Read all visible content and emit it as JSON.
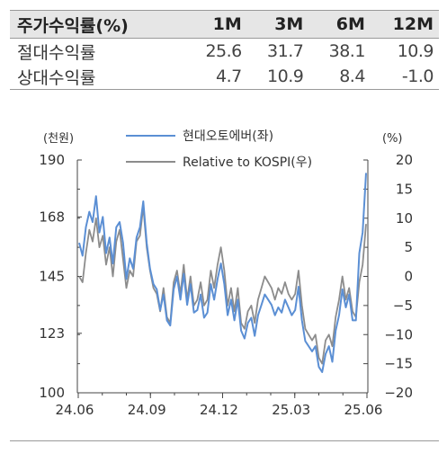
{
  "returns_table": {
    "headers": [
      "주가수익률(%)",
      "1M",
      "3M",
      "6M",
      "12M"
    ],
    "rows": [
      {
        "label": "절대수익률",
        "values": [
          "25.6",
          "31.7",
          "38.1",
          "10.9"
        ]
      },
      {
        "label": "상대수익률",
        "values": [
          "4.7",
          "10.9",
          "8.4",
          "-1.0"
        ]
      }
    ]
  },
  "chart_data": {
    "type": "line",
    "left_unit": "(천원)",
    "right_unit": "(%)",
    "x_ticks": [
      "24.06",
      "24.09",
      "24.12",
      "25.03",
      "25.06"
    ],
    "y_left_ticks": [
      "190",
      "168",
      "145",
      "123",
      "100"
    ],
    "y_right_ticks": [
      "20",
      "15",
      "10",
      "5",
      "0",
      "-5",
      "-10",
      "-15",
      "-20"
    ],
    "ylim_left": [
      100,
      190
    ],
    "ylim_right": [
      -20,
      20
    ],
    "colors": {
      "stock": "#5b8fd4",
      "relative": "#8c8c8c"
    },
    "series": [
      {
        "name": "현대오토에버(좌)",
        "axis": "left",
        "values": [
          158,
          153,
          164,
          170,
          166,
          176,
          162,
          168,
          154,
          160,
          150,
          164,
          166,
          158,
          144,
          152,
          148,
          160,
          164,
          174,
          158,
          148,
          142,
          140,
          132,
          138,
          128,
          126,
          140,
          145,
          136,
          146,
          134,
          142,
          131,
          132,
          138,
          129,
          131,
          142,
          136,
          144,
          150,
          142,
          130,
          136,
          128,
          136,
          124,
          121,
          127,
          129,
          122,
          130,
          134,
          138,
          136,
          134,
          130,
          133,
          131,
          136,
          133,
          130,
          132,
          141,
          128,
          120,
          118,
          116,
          118,
          110,
          108,
          115,
          118,
          112,
          124,
          130,
          140,
          133,
          138,
          128,
          128,
          154,
          162,
          185
        ]
      },
      {
        "name": "Relative to KOSPI(우)",
        "axis": "right",
        "values": [
          0,
          -1,
          4,
          8,
          6,
          10,
          5,
          7,
          2,
          5,
          0,
          6,
          8,
          3,
          -2,
          1,
          0,
          6,
          7,
          12,
          5,
          1,
          -2,
          -3,
          -6,
          -2,
          -7,
          -8,
          -1,
          1,
          -3,
          2,
          -4,
          0,
          -5,
          -4,
          -1,
          -5,
          -4,
          1,
          -2,
          2,
          5,
          1,
          -5,
          -2,
          -6,
          -2,
          -8,
          -9,
          -6,
          -5,
          -8,
          -4,
          -2,
          0,
          -1,
          -2,
          -4,
          -2,
          -3,
          -1,
          -3,
          -4,
          -3,
          1,
          -5,
          -9,
          -10,
          -11,
          -10,
          -14,
          -15,
          -11,
          -10,
          -12,
          -7,
          -4,
          0,
          -4,
          -2,
          -6,
          -7,
          -1,
          2,
          9
        ]
      }
    ]
  }
}
